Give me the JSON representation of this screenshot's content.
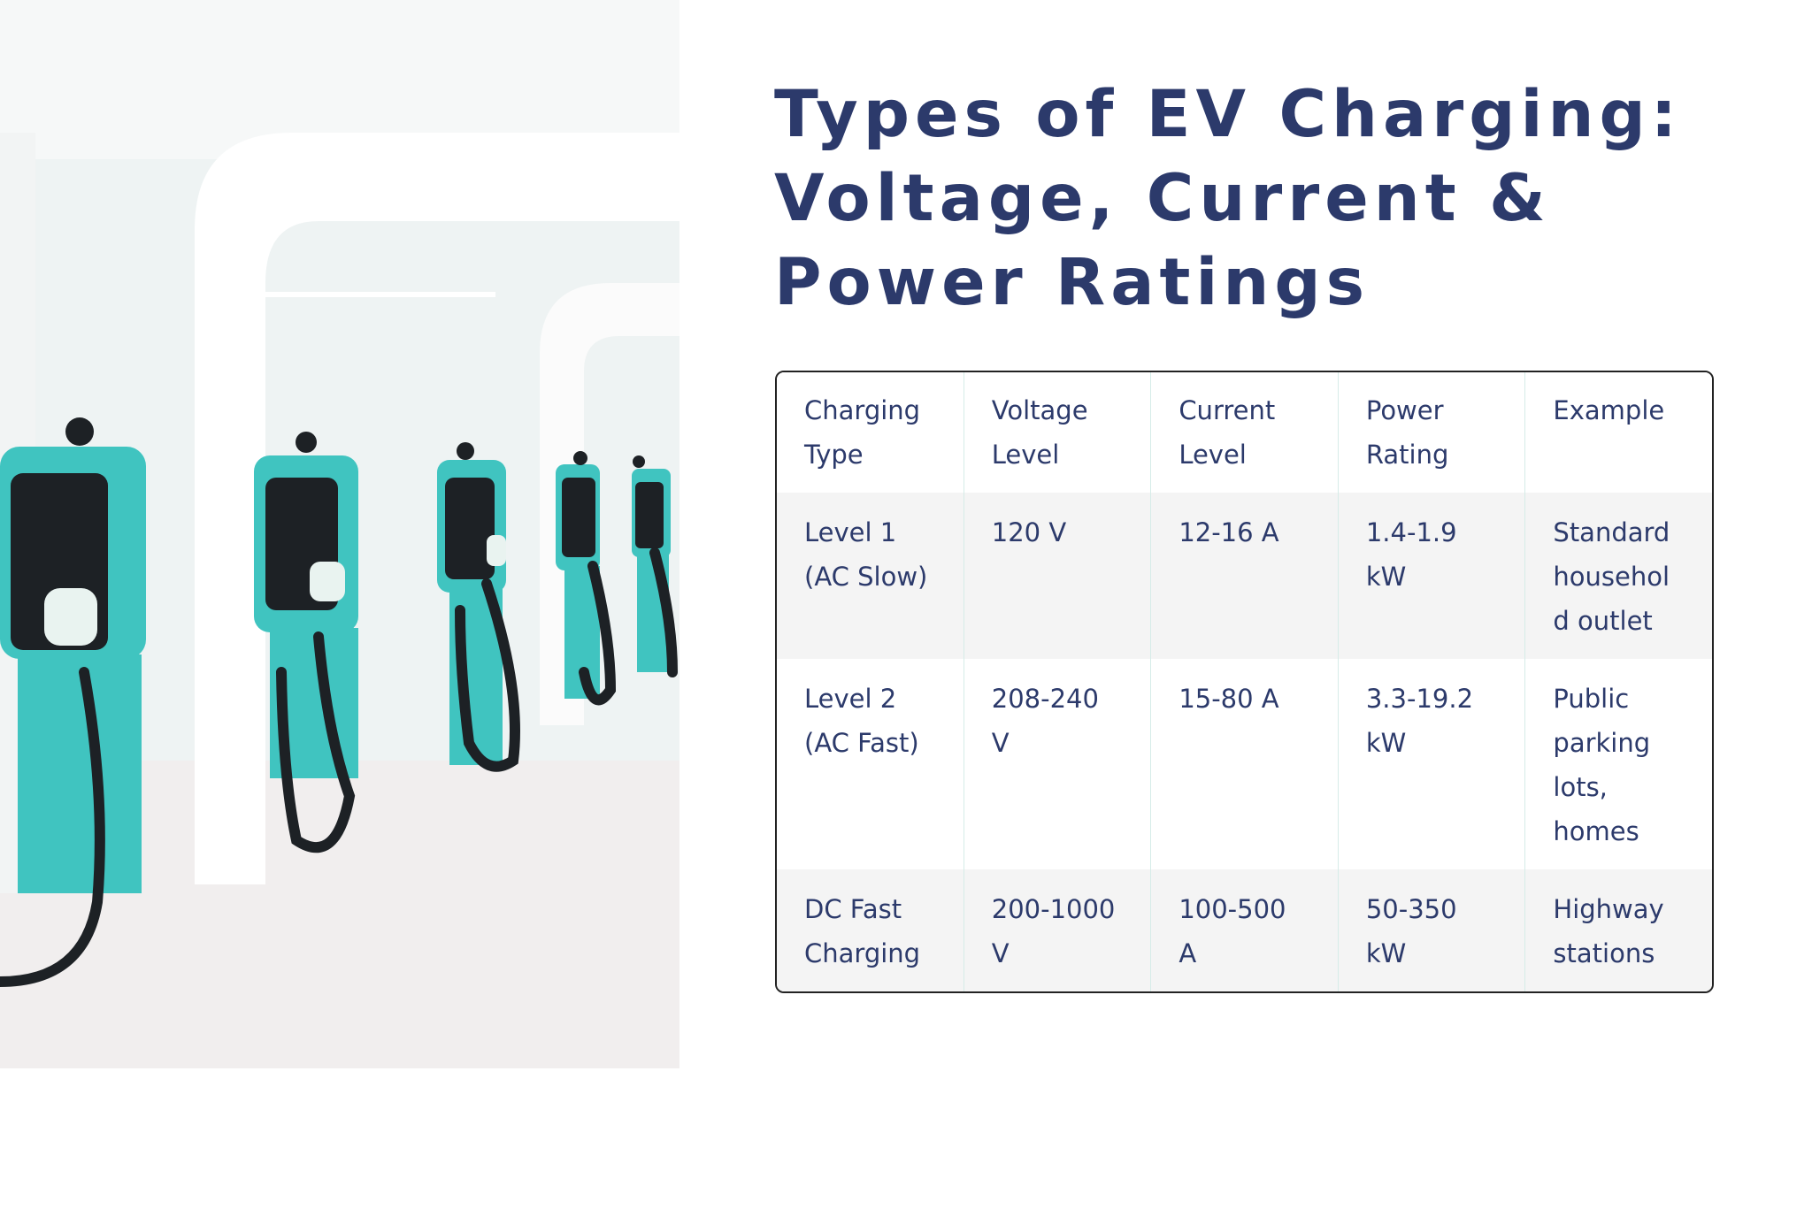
{
  "header": {
    "title": "Types of EV Charging: Voltage, Current & Power Ratings"
  },
  "table": {
    "headers": [
      "Charging Type",
      "Voltage Level",
      "Current Level",
      "Power Rating",
      "Example"
    ],
    "rows": [
      [
        "Level 1 (AC Slow)",
        "120 V",
        "12-16 A",
        "1.4-1.9 kW",
        "Standard household outlet"
      ],
      [
        "Level 2 (AC Fast)",
        "208-240 V",
        "15-80 A",
        "3.3-19.2 kW",
        "Public parking lots, homes"
      ],
      [
        "DC Fast Charging",
        "200-1000 V",
        "100-500 A",
        "50-350 kW",
        "Highway stations"
      ]
    ]
  }
}
